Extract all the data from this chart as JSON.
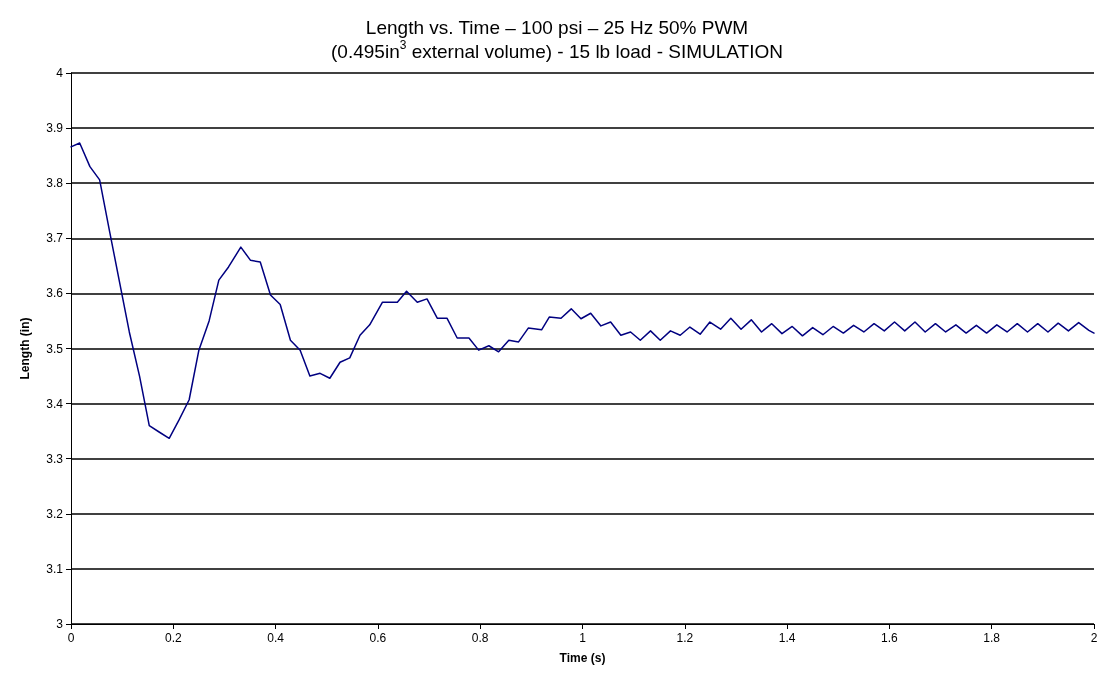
{
  "chart_data": {
    "type": "line",
    "title": "Length vs. Time – 100 psi – 25 Hz 50% PWM",
    "subtitle": "(0.495in$^{3}$ external volume) - 15 lb load - SIMULATION",
    "xlabel": "Time (s)",
    "ylabel": "Length (in)",
    "xlim": [
      0,
      2
    ],
    "xticks": [
      0,
      0.2,
      0.4,
      0.6,
      0.8,
      1,
      1.2,
      1.4,
      1.6,
      1.8,
      2
    ],
    "ylim": [
      3,
      4
    ],
    "yticks": [
      3,
      3.1,
      3.2,
      3.3,
      3.4,
      3.5,
      3.6,
      3.7,
      3.8,
      3.9,
      4
    ],
    "grid": "y",
    "marker": "none",
    "line_style": "solid",
    "x": [
      0,
      0.017,
      0.037,
      0.056,
      0.076,
      0.095,
      0.114,
      0.134,
      0.153,
      0.173,
      0.192,
      0.211,
      0.231,
      0.25,
      0.27,
      0.289,
      0.308,
      0.332,
      0.351,
      0.37,
      0.39,
      0.409,
      0.429,
      0.448,
      0.467,
      0.487,
      0.506,
      0.526,
      0.545,
      0.565,
      0.584,
      0.609,
      0.638,
      0.656,
      0.677,
      0.696,
      0.716,
      0.735,
      0.755,
      0.778,
      0.797,
      0.817,
      0.836,
      0.856,
      0.875,
      0.894,
      0.92,
      0.935,
      0.958,
      0.978,
      0.997,
      1.016,
      1.036,
      1.055,
      1.075,
      1.094,
      1.113,
      1.133,
      1.152,
      1.172,
      1.191,
      1.21,
      1.23,
      1.249,
      1.27,
      1.29,
      1.31,
      1.33,
      1.35,
      1.37,
      1.39,
      1.41,
      1.43,
      1.45,
      1.47,
      1.49,
      1.51,
      1.53,
      1.55,
      1.57,
      1.59,
      1.61,
      1.63,
      1.65,
      1.67,
      1.69,
      1.71,
      1.73,
      1.75,
      1.77,
      1.79,
      1.81,
      1.83,
      1.85,
      1.87,
      1.89,
      1.91,
      1.93,
      1.95,
      1.97,
      1.99,
      2
    ],
    "series": [
      {
        "color": "#000080",
        "values": [
          3.866,
          3.873,
          3.83,
          3.806,
          3.71,
          3.62,
          3.53,
          3.45,
          3.36,
          3.348,
          3.337,
          3.37,
          3.407,
          3.497,
          3.55,
          3.624,
          3.648,
          3.684,
          3.66,
          3.657,
          3.597,
          3.58,
          3.515,
          3.497,
          3.45,
          3.455,
          3.446,
          3.475,
          3.483,
          3.524,
          3.543,
          3.584,
          3.584,
          3.604,
          3.584,
          3.59,
          3.555,
          3.555,
          3.519,
          3.519,
          3.497,
          3.505,
          3.494,
          3.515,
          3.512,
          3.537,
          3.534,
          3.557,
          3.555,
          3.572,
          3.554,
          3.564,
          3.541,
          3.548,
          3.524,
          3.53,
          3.515,
          3.532,
          3.515,
          3.532,
          3.524,
          3.539,
          3.526,
          3.548,
          3.535,
          3.555,
          3.535,
          3.552,
          3.53,
          3.545,
          3.527,
          3.54,
          3.523,
          3.538,
          3.525,
          3.54,
          3.528,
          3.542,
          3.53,
          3.545,
          3.532,
          3.548,
          3.532,
          3.548,
          3.53,
          3.545,
          3.53,
          3.543,
          3.528,
          3.542,
          3.528,
          3.543,
          3.53,
          3.545,
          3.53,
          3.545,
          3.53,
          3.546,
          3.532,
          3.547,
          3.533,
          3.528
        ]
      }
    ]
  }
}
